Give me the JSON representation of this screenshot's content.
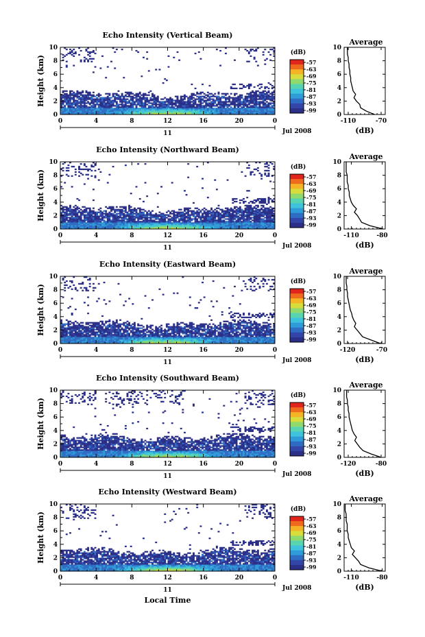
{
  "colors": {
    "scale": [
      "#2b2f87",
      "#3346a8",
      "#2f6dc4",
      "#2f9bd8",
      "#3fc2dc",
      "#58d4b0",
      "#8fd96d",
      "#d8dc3c",
      "#f4b426",
      "#ef6a1c",
      "#e0261c"
    ]
  },
  "x_label": "Local Time",
  "date_label": "Jul 2008",
  "day_label": "11",
  "avg_xlabel": "(dB)",
  "avg_title": "Average",
  "chart_data": [
    {
      "type": "heatmap",
      "title": "Echo Intensity (Vertical Beam)",
      "xlabel": "Local Time",
      "ylabel": "Height (km)",
      "xticks": [
        "0",
        "4",
        "8",
        "12",
        "16",
        "20",
        "0"
      ],
      "yticks": [
        "0",
        "2",
        "4",
        "6",
        "8",
        "10"
      ],
      "xlim": [
        0,
        24
      ],
      "ylim": [
        0,
        10
      ],
      "colorbar": {
        "unit": "(dB)",
        "labels": [
          "-57",
          "-63",
          "-69",
          "-75",
          "-81",
          "-87",
          "-93",
          "-99"
        ]
      },
      "average": {
        "title": "Average",
        "xlabel": "(dB)",
        "xticks": [
          "-110",
          "-70"
        ],
        "yticks": [
          "0",
          "2",
          "4",
          "6",
          "8",
          "10"
        ],
        "xlim": [
          -115,
          -65
        ],
        "height": [
          0,
          0.5,
          1,
          1.5,
          2,
          2.5,
          3,
          3.5,
          4,
          4.5,
          5,
          5.5,
          6,
          6.5,
          7,
          7.5,
          8,
          8.5,
          9,
          9.5,
          10
        ],
        "db": [
          -78,
          -88,
          -95,
          -96,
          -100,
          -103,
          -101,
          -104,
          -105,
          -106,
          -107,
          -107,
          -108,
          -108,
          -109,
          -109,
          -110,
          -110,
          -111,
          -111,
          -111
        ]
      }
    },
    {
      "type": "heatmap",
      "title": "Echo Intensity (Northward Beam)",
      "xlabel": "Local Time",
      "ylabel": "Height (km)",
      "xticks": [
        "0",
        "4",
        "8",
        "12",
        "16",
        "20",
        "0"
      ],
      "yticks": [
        "0",
        "2",
        "4",
        "6",
        "8",
        "10"
      ],
      "xlim": [
        0,
        24
      ],
      "ylim": [
        0,
        10
      ],
      "colorbar": {
        "unit": "(dB)",
        "labels": [
          "-57",
          "-63",
          "-69",
          "-75",
          "-81",
          "-87",
          "-93",
          "-99"
        ]
      },
      "average": {
        "title": "Average",
        "xlabel": "(dB)",
        "xticks": [
          "-110",
          "-80"
        ],
        "yticks": [
          "0",
          "2",
          "4",
          "6",
          "8",
          "10"
        ],
        "xlim": [
          -117,
          -77
        ],
        "height": [
          0,
          0.5,
          1,
          1.5,
          2,
          2.5,
          3,
          3.5,
          4,
          4.5,
          5,
          5.5,
          6,
          6.5,
          7,
          7.5,
          8,
          8.5,
          9,
          9.5,
          10
        ],
        "db": [
          -79,
          -92,
          -100,
          -102,
          -104,
          -107,
          -105,
          -108,
          -110,
          -111,
          -112,
          -112,
          -113,
          -113,
          -114,
          -114,
          -114,
          -115,
          -115,
          -115,
          -115
        ]
      }
    },
    {
      "type": "heatmap",
      "title": "Echo Intensity (Eastward Beam)",
      "xlabel": "Local Time",
      "ylabel": "Height (km)",
      "xticks": [
        "0",
        "4",
        "8",
        "12",
        "16",
        "20",
        "0"
      ],
      "yticks": [
        "0",
        "2",
        "4",
        "6",
        "8",
        "10"
      ],
      "xlim": [
        0,
        24
      ],
      "ylim": [
        0,
        10
      ],
      "colorbar": {
        "unit": "(dB)",
        "labels": [
          "-57",
          "-63",
          "-69",
          "-75",
          "-81",
          "-87",
          "-93",
          "-99"
        ]
      },
      "average": {
        "title": "Average",
        "xlabel": "(dB)",
        "xticks": [
          "-120",
          "-70"
        ],
        "yticks": [
          "0",
          "2",
          "4",
          "6",
          "8",
          "10"
        ],
        "xlim": [
          -125,
          -65
        ],
        "height": [
          0,
          0.5,
          1,
          1.5,
          2,
          2.5,
          3,
          3.5,
          4,
          4.5,
          5,
          5.5,
          6,
          6.5,
          7,
          7.5,
          8,
          8.5,
          9,
          9.5,
          10
        ],
        "db": [
          -72,
          -85,
          -98,
          -102,
          -106,
          -110,
          -108,
          -111,
          -113,
          -114,
          -116,
          -117,
          -118,
          -119,
          -120,
          -120,
          -121,
          -121,
          -122,
          -122,
          -122
        ]
      }
    },
    {
      "type": "heatmap",
      "title": "Echo Intensity (Southward Beam)",
      "xlabel": "Local Time",
      "ylabel": "Height (km)",
      "xticks": [
        "0",
        "4",
        "8",
        "12",
        "16",
        "20",
        "0"
      ],
      "yticks": [
        "0",
        "2",
        "4",
        "6",
        "8",
        "10"
      ],
      "xlim": [
        0,
        24
      ],
      "ylim": [
        0,
        10
      ],
      "colorbar": {
        "unit": "(dB)",
        "labels": [
          "-57",
          "-63",
          "-69",
          "-75",
          "-81",
          "-87",
          "-93",
          "-99"
        ]
      },
      "average": {
        "title": "Average",
        "xlabel": "(dB)",
        "xticks": [
          "-120",
          "-80"
        ],
        "yticks": [
          "0",
          "2",
          "4",
          "6",
          "8",
          "10"
        ],
        "xlim": [
          -125,
          -75
        ],
        "height": [
          0,
          0.5,
          1,
          1.5,
          2,
          2.5,
          3,
          3.5,
          4,
          4.5,
          5,
          5.5,
          6,
          6.5,
          7,
          7.5,
          8,
          8.5,
          9,
          9.5,
          10
        ],
        "db": [
          -80,
          -92,
          -102,
          -106,
          -109,
          -112,
          -110,
          -113,
          -115,
          -116,
          -117,
          -118,
          -119,
          -119,
          -120,
          -120,
          -121,
          -121,
          -122,
          -122,
          -122
        ]
      }
    },
    {
      "type": "heatmap",
      "title": "Echo Intensity (Westward Beam)",
      "xlabel": "Local Time",
      "ylabel": "Height (km)",
      "xticks": [
        "0",
        "4",
        "8",
        "12",
        "16",
        "20",
        "0"
      ],
      "yticks": [
        "0",
        "2",
        "4",
        "6",
        "8",
        "10"
      ],
      "xlim": [
        0,
        24
      ],
      "ylim": [
        0,
        10
      ],
      "colorbar": {
        "unit": "(dB)",
        "labels": [
          "-57",
          "-63",
          "-69",
          "-75",
          "-81",
          "-87",
          "-93",
          "-99"
        ]
      },
      "average": {
        "title": "Average",
        "xlabel": "(dB)",
        "xticks": [
          "-110",
          "-80"
        ],
        "yticks": [
          "0",
          "2",
          "4",
          "6",
          "8",
          "10"
        ],
        "xlim": [
          -117,
          -77
        ],
        "height": [
          0,
          0.5,
          1,
          1.5,
          2,
          2.5,
          3,
          3.5,
          4,
          4.5,
          5,
          5.5,
          6,
          6.5,
          7,
          7.5,
          8,
          8.5,
          9,
          9.5,
          10
        ],
        "db": [
          -80,
          -93,
          -101,
          -103,
          -106,
          -109,
          -107,
          -110,
          -111,
          -112,
          -113,
          -113,
          -114,
          -114,
          -114,
          -115,
          -115,
          -115,
          -116,
          -116,
          -116
        ]
      }
    }
  ]
}
